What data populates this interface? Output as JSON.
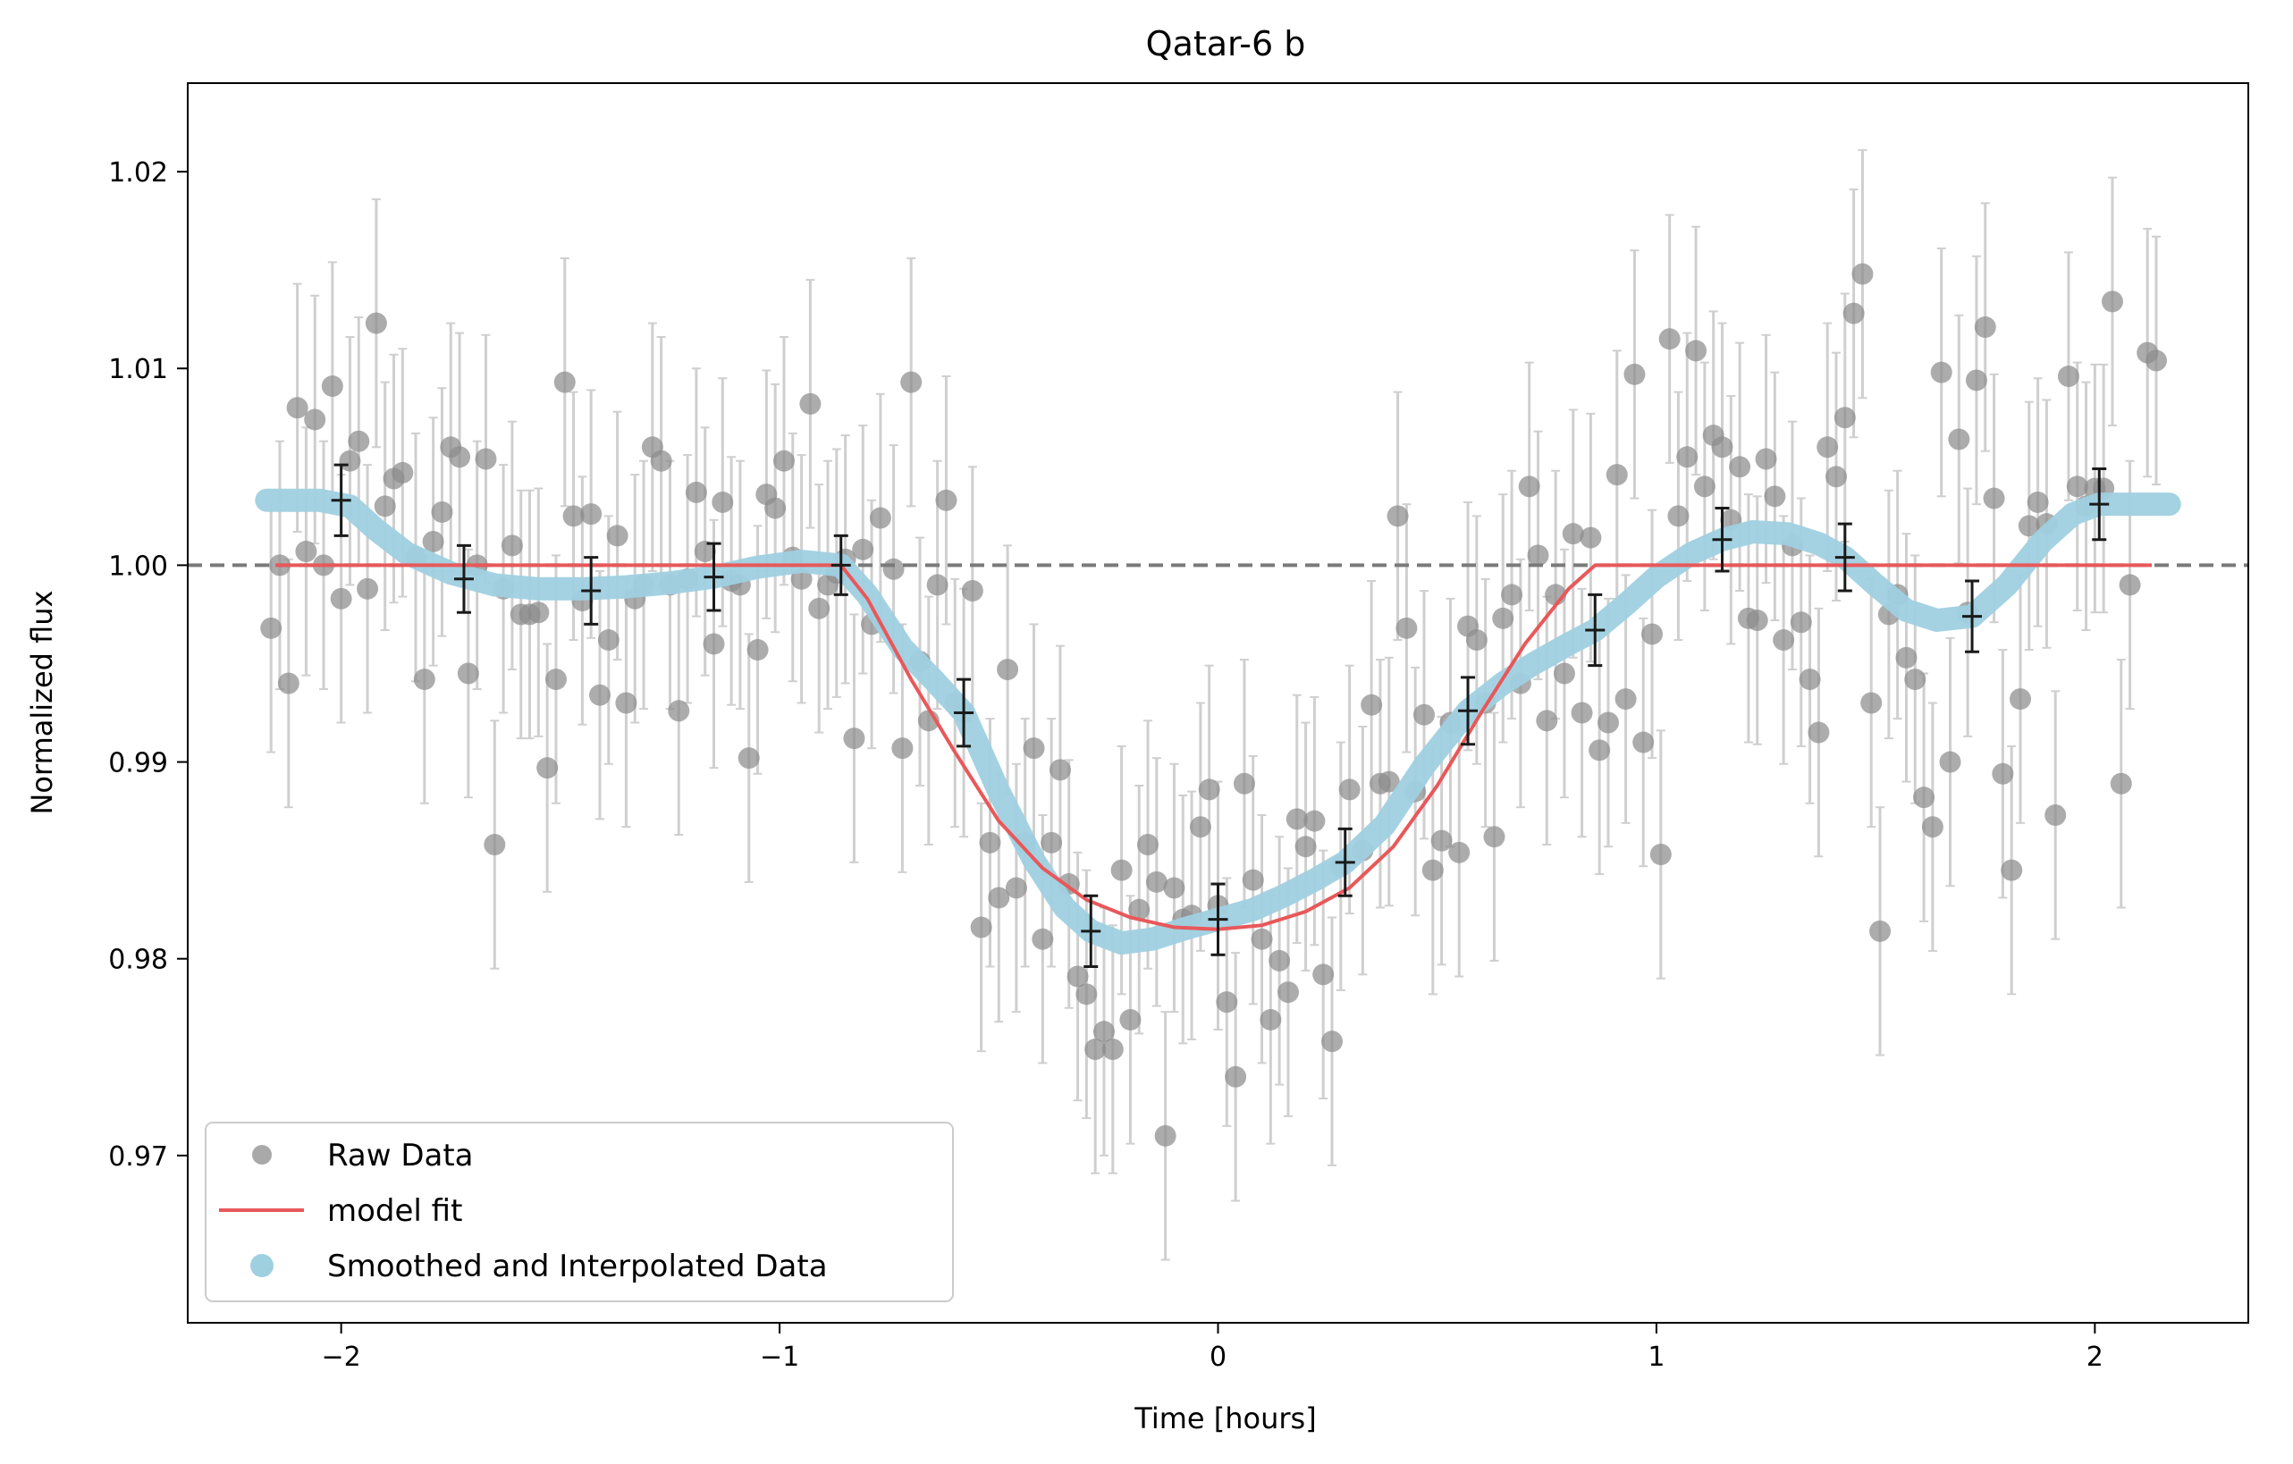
{
  "chart_data": {
    "type": "scatter",
    "title": "Qatar-6 b",
    "xlabel": "Time [hours]",
    "ylabel": "Normalized flux",
    "xlim": [
      -2.35,
      2.35
    ],
    "ylim": [
      0.9615,
      1.0245
    ],
    "x_ticks": [
      {
        "value": -2,
        "label": "−2"
      },
      {
        "value": -1,
        "label": "−1"
      },
      {
        "value": 0,
        "label": "0"
      },
      {
        "value": 1,
        "label": "1"
      },
      {
        "value": 2,
        "label": "2"
      }
    ],
    "y_ticks": [
      {
        "value": 0.97,
        "label": "0.97"
      },
      {
        "value": 0.98,
        "label": "0.98"
      },
      {
        "value": 0.99,
        "label": "0.99"
      },
      {
        "value": 1.0,
        "label": "1.00"
      },
      {
        "value": 1.01,
        "label": "1.01"
      },
      {
        "value": 1.02,
        "label": "1.02"
      }
    ],
    "grid": false,
    "legend_position": "lower-left",
    "reference_line": {
      "y": 1.0,
      "style": "dashed",
      "color": "#7a7a7a"
    },
    "legend": [
      {
        "label": "Raw Data",
        "marker": "circle",
        "color": "#8c8c8c"
      },
      {
        "label": "model fit",
        "marker": "line",
        "color": "#e8585a"
      },
      {
        "label": "Smoothed and Interpolated Data",
        "marker": "circle",
        "color": "#9fd0e0"
      }
    ],
    "raw_data": {
      "color": "#8c8c8c",
      "error_color": "#cfcfcf",
      "error": 0.0063,
      "points": [
        [
          -2.16,
          0.9968
        ],
        [
          -2.14,
          1.0
        ],
        [
          -2.12,
          0.994
        ],
        [
          -2.1,
          1.008
        ],
        [
          -2.08,
          1.0007
        ],
        [
          -2.06,
          1.0074
        ],
        [
          -2.04,
          1.0
        ],
        [
          -2.02,
          1.0091
        ],
        [
          -2.0,
          0.9983
        ],
        [
          -1.98,
          1.0053
        ],
        [
          -1.96,
          1.0063
        ],
        [
          -1.94,
          0.9988
        ],
        [
          -1.92,
          1.0123
        ],
        [
          -1.9,
          1.003
        ],
        [
          -1.88,
          1.0044
        ],
        [
          -1.86,
          1.0047
        ],
        [
          -1.83,
          1.0004
        ],
        [
          -1.81,
          0.9942
        ],
        [
          -1.79,
          1.0012
        ],
        [
          -1.77,
          1.0027
        ],
        [
          -1.75,
          1.006
        ],
        [
          -1.73,
          1.0055
        ],
        [
          -1.71,
          0.9945
        ],
        [
          -1.69,
          1.0
        ],
        [
          -1.67,
          1.0054
        ],
        [
          -1.65,
          0.9858
        ],
        [
          -1.63,
          0.9988
        ],
        [
          -1.61,
          1.001
        ],
        [
          -1.59,
          0.9975
        ],
        [
          -1.57,
          0.9975
        ],
        [
          -1.55,
          0.9976
        ],
        [
          -1.53,
          0.9897
        ],
        [
          -1.51,
          0.9942
        ],
        [
          -1.49,
          1.0093
        ],
        [
          -1.47,
          1.0025
        ],
        [
          -1.45,
          0.9982
        ],
        [
          -1.43,
          1.0026
        ],
        [
          -1.41,
          0.9934
        ],
        [
          -1.39,
          0.9962
        ],
        [
          -1.37,
          1.0015
        ],
        [
          -1.35,
          0.993
        ],
        [
          -1.33,
          0.9983
        ],
        [
          -1.31,
          0.999
        ],
        [
          -1.29,
          1.006
        ],
        [
          -1.27,
          1.0053
        ],
        [
          -1.25,
          0.999
        ],
        [
          -1.23,
          0.9926
        ],
        [
          -1.21,
          0.9993
        ],
        [
          -1.19,
          1.0037
        ],
        [
          -1.17,
          1.0007
        ],
        [
          -1.15,
          0.996
        ],
        [
          -1.13,
          1.0032
        ],
        [
          -1.11,
          0.9992
        ],
        [
          -1.09,
          0.999
        ],
        [
          -1.07,
          0.9902
        ],
        [
          -1.05,
          0.9957
        ],
        [
          -1.03,
          1.0036
        ],
        [
          -1.01,
          1.0029
        ],
        [
          -0.99,
          1.0053
        ],
        [
          -0.97,
          1.0004
        ],
        [
          -0.95,
          0.9993
        ],
        [
          -0.93,
          1.0082
        ],
        [
          -0.91,
          0.9978
        ],
        [
          -0.89,
          0.999
        ],
        [
          -0.87,
          0.9996
        ],
        [
          -0.85,
          1.0003
        ],
        [
          -0.83,
          0.9912
        ],
        [
          -0.81,
          1.0008
        ],
        [
          -0.79,
          0.997
        ],
        [
          -0.77,
          1.0024
        ],
        [
          -0.74,
          0.9998
        ],
        [
          -0.72,
          0.9907
        ],
        [
          -0.7,
          1.0093
        ],
        [
          -0.68,
          0.9951
        ],
        [
          -0.66,
          0.9921
        ],
        [
          -0.64,
          0.999
        ],
        [
          -0.62,
          1.0033
        ],
        [
          -0.6,
          0.993
        ],
        [
          -0.58,
          0.9925
        ],
        [
          -0.56,
          0.9987
        ],
        [
          -0.54,
          0.9816
        ],
        [
          -0.52,
          0.9859
        ],
        [
          -0.5,
          0.9831
        ],
        [
          -0.48,
          0.9947
        ],
        [
          -0.46,
          0.9836
        ],
        [
          -0.44,
          0.9859
        ],
        [
          -0.42,
          0.9907
        ],
        [
          -0.4,
          0.981
        ],
        [
          -0.38,
          0.9859
        ],
        [
          -0.36,
          0.9896
        ],
        [
          -0.34,
          0.9838
        ],
        [
          -0.32,
          0.9791
        ],
        [
          -0.3,
          0.9782
        ],
        [
          -0.28,
          0.9754
        ],
        [
          -0.26,
          0.9763
        ],
        [
          -0.24,
          0.9754
        ],
        [
          -0.22,
          0.9845
        ],
        [
          -0.2,
          0.9769
        ],
        [
          -0.18,
          0.9825
        ],
        [
          -0.16,
          0.9858
        ],
        [
          -0.14,
          0.9839
        ],
        [
          -0.12,
          0.971
        ],
        [
          -0.1,
          0.9836
        ],
        [
          -0.08,
          0.982
        ],
        [
          -0.06,
          0.9822
        ],
        [
          -0.04,
          0.9867
        ],
        [
          -0.02,
          0.9886
        ],
        [
          0.0,
          0.9827
        ],
        [
          0.02,
          0.9778
        ],
        [
          0.04,
          0.974
        ],
        [
          0.06,
          0.9889
        ],
        [
          0.08,
          0.984
        ],
        [
          0.1,
          0.981
        ],
        [
          0.12,
          0.9769
        ],
        [
          0.14,
          0.9799
        ],
        [
          0.16,
          0.9783
        ],
        [
          0.18,
          0.9871
        ],
        [
          0.2,
          0.9857
        ],
        [
          0.22,
          0.987
        ],
        [
          0.24,
          0.9792
        ],
        [
          0.26,
          0.9758
        ],
        [
          0.28,
          0.9847
        ],
        [
          0.3,
          0.9886
        ],
        [
          0.33,
          0.9855
        ],
        [
          0.35,
          0.9929
        ],
        [
          0.37,
          0.9889
        ],
        [
          0.39,
          0.989
        ],
        [
          0.41,
          1.0025
        ],
        [
          0.43,
          0.9968
        ],
        [
          0.45,
          0.9885
        ],
        [
          0.47,
          0.9924
        ],
        [
          0.49,
          0.9845
        ],
        [
          0.51,
          0.986
        ],
        [
          0.53,
          0.992
        ],
        [
          0.55,
          0.9854
        ],
        [
          0.57,
          0.9969
        ],
        [
          0.59,
          0.9962
        ],
        [
          0.61,
          0.993
        ],
        [
          0.63,
          0.9862
        ],
        [
          0.65,
          0.9973
        ],
        [
          0.67,
          0.9985
        ],
        [
          0.69,
          0.994
        ],
        [
          0.71,
          1.004
        ],
        [
          0.73,
          1.0005
        ],
        [
          0.75,
          0.9921
        ],
        [
          0.77,
          0.9985
        ],
        [
          0.79,
          0.9945
        ],
        [
          0.81,
          1.0016
        ],
        [
          0.83,
          0.9925
        ],
        [
          0.85,
          1.0014
        ],
        [
          0.87,
          0.9906
        ],
        [
          0.89,
          0.992
        ],
        [
          0.91,
          1.0046
        ],
        [
          0.93,
          0.9932
        ],
        [
          0.95,
          1.0097
        ],
        [
          0.97,
          0.991
        ],
        [
          0.99,
          0.9965
        ],
        [
          1.01,
          0.9853
        ],
        [
          1.03,
          1.0115
        ],
        [
          1.05,
          1.0025
        ],
        [
          1.07,
          1.0055
        ],
        [
          1.09,
          1.0109
        ],
        [
          1.11,
          1.004
        ],
        [
          1.13,
          1.0066
        ],
        [
          1.15,
          1.006
        ],
        [
          1.17,
          1.0023
        ],
        [
          1.19,
          1.005
        ],
        [
          1.21,
          0.9973
        ],
        [
          1.23,
          0.9972
        ],
        [
          1.25,
          1.0054
        ],
        [
          1.27,
          1.0035
        ],
        [
          1.29,
          0.9962
        ],
        [
          1.31,
          1.001
        ],
        [
          1.33,
          0.9971
        ],
        [
          1.35,
          0.9942
        ],
        [
          1.37,
          0.9915
        ],
        [
          1.39,
          1.006
        ],
        [
          1.41,
          1.0045
        ],
        [
          1.43,
          1.0075
        ],
        [
          1.45,
          1.0128
        ],
        [
          1.47,
          1.0148
        ],
        [
          1.49,
          0.993
        ],
        [
          1.51,
          0.9814
        ],
        [
          1.53,
          0.9975
        ],
        [
          1.55,
          0.9985
        ],
        [
          1.57,
          0.9953
        ],
        [
          1.59,
          0.9942
        ],
        [
          1.61,
          0.9882
        ],
        [
          1.63,
          0.9867
        ],
        [
          1.65,
          1.0098
        ],
        [
          1.67,
          0.99
        ],
        [
          1.69,
          1.0064
        ],
        [
          1.71,
          0.9976
        ],
        [
          1.73,
          1.0094
        ],
        [
          1.75,
          1.0121
        ],
        [
          1.77,
          1.0034
        ],
        [
          1.79,
          0.9894
        ],
        [
          1.81,
          0.9845
        ],
        [
          1.83,
          0.9932
        ],
        [
          1.85,
          1.002
        ],
        [
          1.87,
          1.0032
        ],
        [
          1.89,
          1.0021
        ],
        [
          1.91,
          0.9873
        ],
        [
          1.94,
          1.0096
        ],
        [
          1.96,
          1.004
        ],
        [
          1.98,
          1.003
        ],
        [
          2.0,
          1.0039
        ],
        [
          2.02,
          1.0039
        ],
        [
          2.04,
          1.0134
        ],
        [
          2.06,
          0.9889
        ],
        [
          2.08,
          0.999
        ],
        [
          2.12,
          1.0108
        ],
        [
          2.14,
          1.0104
        ]
      ]
    },
    "binned_data": {
      "color": "#1a1a1a",
      "points": [
        [
          -2.0,
          1.0033,
          0.0018
        ],
        [
          -1.72,
          0.9993,
          0.0017
        ],
        [
          -1.43,
          0.9987,
          0.0017
        ],
        [
          -1.15,
          0.9994,
          0.0017
        ],
        [
          -0.86,
          1.0,
          0.0015
        ],
        [
          -0.58,
          0.9925,
          0.0017
        ],
        [
          -0.29,
          0.9814,
          0.0018
        ],
        [
          0.0,
          0.982,
          0.0018
        ],
        [
          0.29,
          0.9849,
          0.0017
        ],
        [
          0.57,
          0.9926,
          0.0017
        ],
        [
          0.86,
          0.9967,
          0.0018
        ],
        [
          1.15,
          1.0013,
          0.0016
        ],
        [
          1.43,
          1.0004,
          0.0017
        ],
        [
          1.72,
          0.9974,
          0.0018
        ],
        [
          2.01,
          1.0031,
          0.0018
        ]
      ]
    },
    "model_fit": {
      "color": "#e8585a",
      "points": [
        [
          -2.15,
          1.0
        ],
        [
          -0.86,
          1.0
        ],
        [
          -0.8,
          0.9983
        ],
        [
          -0.7,
          0.9942
        ],
        [
          -0.6,
          0.9905
        ],
        [
          -0.5,
          0.987
        ],
        [
          -0.4,
          0.9846
        ],
        [
          -0.3,
          0.983
        ],
        [
          -0.2,
          0.9821
        ],
        [
          -0.1,
          0.9816
        ],
        [
          0.0,
          0.9815
        ],
        [
          0.1,
          0.9817
        ],
        [
          0.2,
          0.9824
        ],
        [
          0.3,
          0.9836
        ],
        [
          0.4,
          0.9857
        ],
        [
          0.5,
          0.9888
        ],
        [
          0.6,
          0.9925
        ],
        [
          0.7,
          0.996
        ],
        [
          0.8,
          0.9988
        ],
        [
          0.86,
          1.0
        ],
        [
          2.13,
          1.0
        ]
      ]
    },
    "smoothed_data": {
      "color": "#9fd0e0",
      "points": [
        [
          -2.17,
          1.0033
        ],
        [
          -2.05,
          1.0033
        ],
        [
          -1.98,
          1.003
        ],
        [
          -1.92,
          1.0018
        ],
        [
          -1.85,
          1.0006
        ],
        [
          -1.75,
          0.9996
        ],
        [
          -1.65,
          0.999
        ],
        [
          -1.55,
          0.9988
        ],
        [
          -1.45,
          0.9988
        ],
        [
          -1.35,
          0.9989
        ],
        [
          -1.25,
          0.9991
        ],
        [
          -1.15,
          0.9994
        ],
        [
          -1.05,
          0.9999
        ],
        [
          -0.95,
          1.0002
        ],
        [
          -0.86,
          1.0
        ],
        [
          -0.8,
          0.9985
        ],
        [
          -0.72,
          0.9958
        ],
        [
          -0.65,
          0.9942
        ],
        [
          -0.58,
          0.9925
        ],
        [
          -0.5,
          0.9885
        ],
        [
          -0.42,
          0.985
        ],
        [
          -0.35,
          0.9826
        ],
        [
          -0.29,
          0.9814
        ],
        [
          -0.22,
          0.9808
        ],
        [
          -0.15,
          0.981
        ],
        [
          -0.08,
          0.9815
        ],
        [
          0.0,
          0.982
        ],
        [
          0.08,
          0.9825
        ],
        [
          0.15,
          0.9832
        ],
        [
          0.22,
          0.984
        ],
        [
          0.29,
          0.9849
        ],
        [
          0.38,
          0.9868
        ],
        [
          0.47,
          0.9898
        ],
        [
          0.57,
          0.9926
        ],
        [
          0.65,
          0.994
        ],
        [
          0.72,
          0.995
        ],
        [
          0.8,
          0.996
        ],
        [
          0.86,
          0.9967
        ],
        [
          0.93,
          0.998
        ],
        [
          1.0,
          0.9994
        ],
        [
          1.08,
          1.0006
        ],
        [
          1.15,
          1.0013
        ],
        [
          1.22,
          1.0017
        ],
        [
          1.3,
          1.0016
        ],
        [
          1.37,
          1.0011
        ],
        [
          1.43,
          1.0004
        ],
        [
          1.5,
          0.999
        ],
        [
          1.57,
          0.9977
        ],
        [
          1.64,
          0.9972
        ],
        [
          1.72,
          0.9974
        ],
        [
          1.8,
          0.999
        ],
        [
          1.88,
          1.0012
        ],
        [
          1.95,
          1.0026
        ],
        [
          2.01,
          1.0031
        ],
        [
          2.08,
          1.0031
        ],
        [
          2.17,
          1.0031
        ]
      ]
    }
  }
}
